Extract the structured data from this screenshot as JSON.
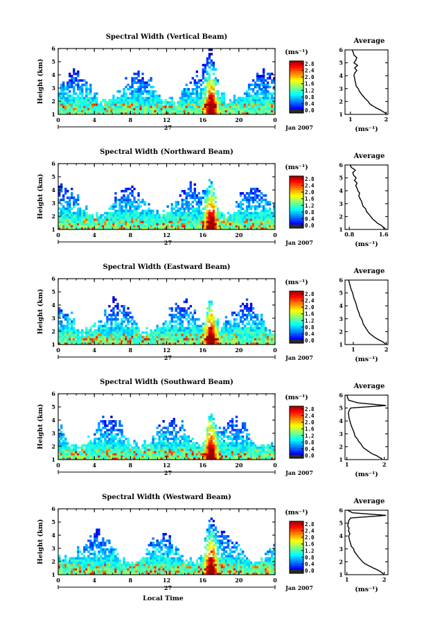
{
  "chart_data": [
    {
      "type": "heatmap",
      "title": "Spectral Width (Vertical Beam)",
      "ylabel": "Height (km)",
      "yticks": [
        "1",
        "2",
        "3",
        "4",
        "5",
        "6"
      ],
      "ylim": [
        1,
        6
      ],
      "xticks": [
        "0",
        "4",
        "8",
        "12",
        "16",
        "20",
        "0"
      ],
      "xlim": [
        0,
        24
      ],
      "date_day": "27",
      "date_month": "Jan 2007",
      "colorbar": {
        "unit": "(ms⁻¹)",
        "ticks": [
          "2.8",
          "2.4",
          "2.0",
          "1.6",
          "1.2",
          "0.8",
          "0.4",
          "0.0"
        ],
        "min": 0.0,
        "max": 3.0
      },
      "average": {
        "title": "Average",
        "xlabel": "(ms⁻¹)",
        "xticks": [
          "1",
          "2"
        ],
        "xlim": [
          0.85,
          2.05
        ],
        "heights": [
          1.0,
          1.1,
          1.2,
          1.3,
          1.4,
          1.5,
          1.6,
          1.7,
          1.8,
          1.9,
          2.0,
          2.2,
          2.4,
          2.6,
          2.8,
          3.0,
          3.2,
          3.4,
          3.6,
          3.8,
          4.0,
          4.2,
          4.4,
          4.6,
          4.8,
          5.0,
          5.2,
          5.4,
          5.6,
          5.8,
          6.0
        ],
        "values": [
          2.0,
          1.98,
          1.92,
          1.86,
          1.8,
          1.72,
          1.66,
          1.6,
          1.55,
          1.52,
          1.5,
          1.42,
          1.36,
          1.3,
          1.25,
          1.22,
          1.16,
          1.15,
          1.13,
          1.12,
          1.1,
          1.12,
          1.18,
          1.12,
          1.2,
          1.1,
          1.15,
          1.18,
          1.1,
          1.08,
          1.05
        ]
      }
    },
    {
      "type": "heatmap",
      "title": "Spectral Width (Northward Beam)",
      "ylabel": "Height (km)",
      "yticks": [
        "1",
        "2",
        "3",
        "4",
        "5",
        "6"
      ],
      "ylim": [
        1,
        6
      ],
      "xticks": [
        "0",
        "4",
        "8",
        "12",
        "16",
        "20",
        "0"
      ],
      "xlim": [
        0,
        24
      ],
      "date_day": "27",
      "date_month": "Jan 2007",
      "colorbar": {
        "unit": "(ms⁻¹)",
        "ticks": [
          "2.8",
          "2.4",
          "2.0",
          "1.6",
          "1.2",
          "0.8",
          "0.4",
          "0.0"
        ],
        "min": 0.0,
        "max": 3.0
      },
      "average": {
        "title": "Average",
        "xlabel": "(ms⁻¹)",
        "xticks": [
          "0.8",
          "1.6"
        ],
        "xlim": [
          0.7,
          1.7
        ],
        "heights": [
          1.0,
          1.1,
          1.2,
          1.3,
          1.4,
          1.5,
          1.6,
          1.7,
          1.8,
          1.9,
          2.0,
          2.2,
          2.4,
          2.6,
          2.8,
          3.0,
          3.2,
          3.4,
          3.6,
          3.8,
          4.0,
          4.2,
          4.4,
          4.6,
          4.8,
          5.0,
          5.2,
          5.4,
          5.6,
          5.8,
          6.0
        ],
        "values": [
          1.65,
          1.62,
          1.58,
          1.55,
          1.5,
          1.45,
          1.42,
          1.38,
          1.35,
          1.32,
          1.3,
          1.25,
          1.2,
          1.18,
          1.12,
          1.1,
          1.08,
          1.05,
          1.02,
          1.04,
          1.0,
          0.98,
          0.95,
          0.98,
          0.92,
          0.96,
          0.9,
          0.88,
          0.94,
          0.85,
          0.82
        ]
      }
    },
    {
      "type": "heatmap",
      "title": "Spectral Width (Eastward Beam)",
      "ylabel": "Height (km)",
      "yticks": [
        "1",
        "2",
        "3",
        "4",
        "5",
        "6"
      ],
      "ylim": [
        1,
        6
      ],
      "xticks": [
        "0",
        "4",
        "8",
        "12",
        "16",
        "20",
        "0"
      ],
      "xlim": [
        0,
        24
      ],
      "date_day": "27",
      "date_month": "Jan 2007",
      "colorbar": {
        "unit": "(ms⁻¹)",
        "ticks": [
          "2.8",
          "2.4",
          "2.0",
          "1.6",
          "1.2",
          "0.8",
          "0.4",
          "0.0"
        ],
        "min": 0.0,
        "max": 3.0
      },
      "average": {
        "title": "Average",
        "xlabel": "(ms⁻¹)",
        "xticks": [
          "1",
          "2"
        ],
        "xlim": [
          0.75,
          2.05
        ],
        "heights": [
          1.0,
          1.1,
          1.2,
          1.3,
          1.4,
          1.5,
          1.6,
          1.7,
          1.8,
          1.9,
          2.0,
          2.2,
          2.4,
          2.6,
          2.8,
          3.0,
          3.2,
          3.4,
          3.6,
          3.8,
          4.0,
          4.2,
          4.4,
          4.6,
          4.8,
          5.0,
          5.2,
          5.4,
          5.6,
          5.8,
          6.0
        ],
        "values": [
          2.0,
          1.95,
          1.9,
          1.82,
          1.75,
          1.68,
          1.62,
          1.58,
          1.52,
          1.48,
          1.45,
          1.4,
          1.35,
          1.3,
          1.28,
          1.25,
          1.2,
          1.18,
          1.15,
          1.12,
          1.1,
          1.08,
          1.05,
          1.02,
          1.0,
          0.98,
          0.95,
          0.92,
          0.9,
          0.88,
          0.86
        ]
      }
    },
    {
      "type": "heatmap",
      "title": "Spectral Width (Southward Beam)",
      "ylabel": "Height (km)",
      "yticks": [
        "1",
        "2",
        "3",
        "4",
        "5",
        "6"
      ],
      "ylim": [
        1,
        6
      ],
      "xticks": [
        "0",
        "4",
        "8",
        "12",
        "16",
        "20",
        "0"
      ],
      "xlim": [
        0,
        24
      ],
      "date_day": "27",
      "date_month": "Jan 2007",
      "colorbar": {
        "unit": "(ms⁻¹)",
        "ticks": [
          "2.8",
          "2.4",
          "2.0",
          "1.6",
          "1.2",
          "0.8",
          "0.4",
          "0.0"
        ],
        "min": 0.0,
        "max": 3.0
      },
      "average": {
        "title": "Average",
        "xlabel": "(ms⁻¹)",
        "xticks": [
          "1",
          "2"
        ],
        "xlim": [
          0.95,
          2.1
        ],
        "heights": [
          1.0,
          1.1,
          1.2,
          1.3,
          1.4,
          1.5,
          1.6,
          1.7,
          1.8,
          1.9,
          2.0,
          2.2,
          2.4,
          2.6,
          2.8,
          3.0,
          3.2,
          3.4,
          3.6,
          3.8,
          4.0,
          4.2,
          4.4,
          4.6,
          4.8,
          5.0,
          5.2,
          5.4,
          5.6,
          5.8,
          6.0
        ],
        "values": [
          1.95,
          1.92,
          1.85,
          1.8,
          1.72,
          1.65,
          1.6,
          1.55,
          1.5,
          1.45,
          1.42,
          1.38,
          1.32,
          1.28,
          1.22,
          1.2,
          1.18,
          1.15,
          1.12,
          1.1,
          1.08,
          1.06,
          1.05,
          1.04,
          1.06,
          1.1,
          2.05,
          1.3,
          1.05,
          1.02,
          1.0
        ]
      }
    },
    {
      "type": "heatmap",
      "title": "Spectral Width (Westward Beam)",
      "ylabel": "Height (km)",
      "yticks": [
        "1",
        "2",
        "3",
        "4",
        "5",
        "6"
      ],
      "ylim": [
        1,
        6
      ],
      "xticks": [
        "0",
        "4",
        "8",
        "12",
        "16",
        "20",
        "0"
      ],
      "xlim": [
        0,
        24
      ],
      "date_day": "27",
      "date_month": "Jan 2007",
      "xlabel": "Local Time",
      "colorbar": {
        "unit": "(ms⁻¹)",
        "ticks": [
          "2.8",
          "2.4",
          "2.0",
          "1.6",
          "1.2",
          "0.8",
          "0.4",
          "0.0"
        ],
        "min": 0.0,
        "max": 3.0
      },
      "average": {
        "title": "Average",
        "xlabel": "(ms⁻¹)",
        "xticks": [
          "1",
          "2"
        ],
        "xlim": [
          0.95,
          2.1
        ],
        "heights": [
          1.0,
          1.1,
          1.2,
          1.3,
          1.4,
          1.5,
          1.6,
          1.7,
          1.8,
          1.9,
          2.0,
          2.2,
          2.4,
          2.6,
          2.8,
          3.0,
          3.2,
          3.4,
          3.6,
          3.8,
          4.0,
          4.2,
          4.4,
          4.6,
          4.8,
          5.0,
          5.2,
          5.4,
          5.6,
          5.8,
          6.0
        ],
        "values": [
          1.98,
          1.96,
          1.92,
          1.86,
          1.8,
          1.72,
          1.65,
          1.58,
          1.52,
          1.46,
          1.42,
          1.36,
          1.3,
          1.25,
          1.2,
          1.18,
          1.12,
          1.1,
          1.08,
          1.06,
          1.05,
          1.08,
          1.04,
          1.06,
          1.02,
          1.04,
          1.05,
          1.1,
          2.05,
          1.15,
          1.02
        ]
      }
    }
  ]
}
